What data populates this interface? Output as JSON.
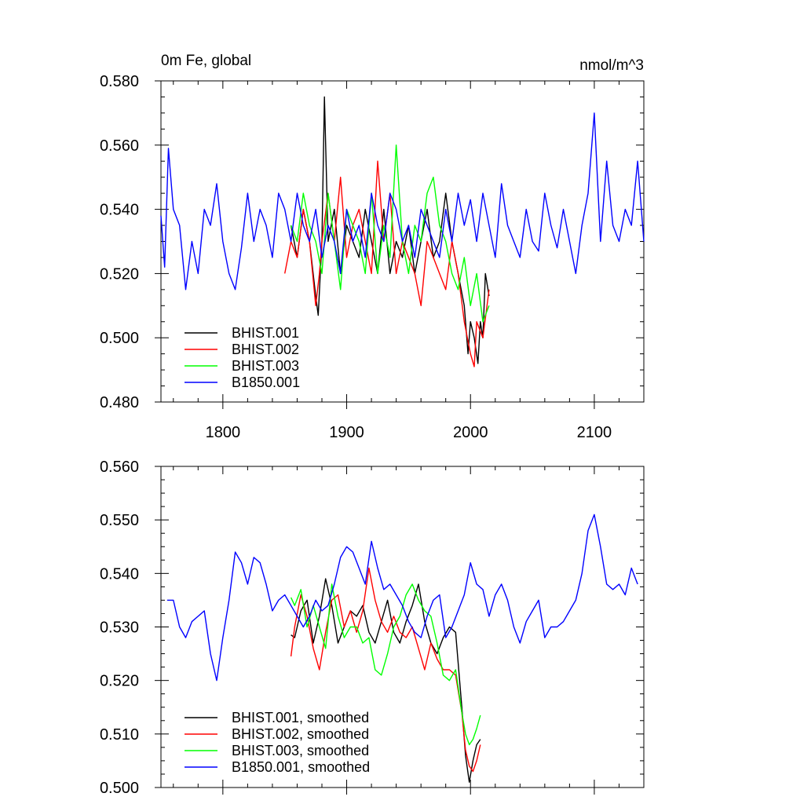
{
  "chart_data": [
    {
      "type": "line",
      "title": "0m Fe, global",
      "units": "nmol/m^3",
      "xlim": [
        1750,
        2140
      ],
      "ylim": [
        0.48,
        0.58
      ],
      "xticks": [
        1800,
        1900,
        2000,
        2100
      ],
      "xtick_labels": [
        "1800",
        "1900",
        "2000",
        "2100"
      ],
      "yticks": [
        0.48,
        0.5,
        0.52,
        0.54,
        0.56,
        0.58
      ],
      "ytick_labels": [
        "0.480",
        "0.500",
        "0.520",
        "0.540",
        "0.560",
        "0.580"
      ],
      "grid": false,
      "legend_position": "bottom-left",
      "series": [
        {
          "name": "BHIST.001",
          "color": "#000000",
          "x": [
            1855,
            1860,
            1865,
            1870,
            1875,
            1877,
            1880,
            1882,
            1885,
            1890,
            1895,
            1900,
            1905,
            1910,
            1915,
            1920,
            1925,
            1930,
            1935,
            1940,
            1945,
            1950,
            1955,
            1960,
            1965,
            1970,
            1975,
            1980,
            1985,
            1990,
            1995,
            1998,
            2000,
            2003,
            2006,
            2008,
            2010,
            2012,
            2015
          ],
          "y": [
            0.535,
            0.525,
            0.54,
            0.53,
            0.513,
            0.507,
            0.53,
            0.575,
            0.53,
            0.54,
            0.52,
            0.535,
            0.53,
            0.525,
            0.54,
            0.53,
            0.52,
            0.54,
            0.52,
            0.53,
            0.525,
            0.535,
            0.52,
            0.53,
            0.54,
            0.525,
            0.53,
            0.545,
            0.53,
            0.52,
            0.51,
            0.495,
            0.505,
            0.5,
            0.492,
            0.505,
            0.5,
            0.52,
            0.513
          ]
        },
        {
          "name": "BHIST.002",
          "color": "#ff0000",
          "x": [
            1850,
            1855,
            1860,
            1865,
            1870,
            1875,
            1878,
            1880,
            1885,
            1890,
            1895,
            1900,
            1905,
            1910,
            1915,
            1920,
            1925,
            1930,
            1935,
            1940,
            1945,
            1950,
            1955,
            1960,
            1965,
            1970,
            1975,
            1980,
            1985,
            1990,
            1995,
            2000,
            2003,
            2005,
            2010,
            2015
          ],
          "y": [
            0.52,
            0.53,
            0.525,
            0.54,
            0.53,
            0.51,
            0.52,
            0.53,
            0.545,
            0.53,
            0.55,
            0.525,
            0.535,
            0.54,
            0.53,
            0.52,
            0.555,
            0.53,
            0.545,
            0.52,
            0.53,
            0.525,
            0.52,
            0.51,
            0.53,
            0.525,
            0.52,
            0.515,
            0.53,
            0.52,
            0.505,
            0.495,
            0.491,
            0.505,
            0.5,
            0.515
          ]
        },
        {
          "name": "BHIST.003",
          "color": "#00ff00",
          "x": [
            1855,
            1860,
            1865,
            1870,
            1875,
            1880,
            1885,
            1890,
            1895,
            1900,
            1905,
            1910,
            1915,
            1920,
            1925,
            1930,
            1935,
            1940,
            1945,
            1950,
            1955,
            1960,
            1965,
            1970,
            1975,
            1980,
            1985,
            1990,
            1995,
            2000,
            2005,
            2010,
            2015
          ],
          "y": [
            0.535,
            0.53,
            0.545,
            0.535,
            0.53,
            0.52,
            0.545,
            0.53,
            0.515,
            0.54,
            0.535,
            0.53,
            0.52,
            0.545,
            0.52,
            0.535,
            0.525,
            0.56,
            0.53,
            0.52,
            0.535,
            0.53,
            0.545,
            0.55,
            0.535,
            0.53,
            0.52,
            0.515,
            0.525,
            0.51,
            0.52,
            0.505,
            0.51
          ]
        },
        {
          "name": "B1850.001",
          "color": "#0000ff",
          "x": [
            1750,
            1753,
            1756,
            1760,
            1765,
            1770,
            1775,
            1780,
            1785,
            1790,
            1795,
            1800,
            1805,
            1810,
            1815,
            1820,
            1825,
            1830,
            1835,
            1840,
            1845,
            1850,
            1855,
            1860,
            1865,
            1870,
            1875,
            1880,
            1885,
            1890,
            1895,
            1900,
            1905,
            1910,
            1915,
            1920,
            1925,
            1930,
            1935,
            1940,
            1945,
            1950,
            1955,
            1960,
            1965,
            1970,
            1975,
            1980,
            1985,
            1990,
            1995,
            2000,
            2005,
            2010,
            2015,
            2020,
            2025,
            2030,
            2035,
            2040,
            2045,
            2050,
            2055,
            2060,
            2065,
            2070,
            2075,
            2080,
            2085,
            2090,
            2095,
            2100,
            2105,
            2110,
            2115,
            2120,
            2125,
            2130,
            2135,
            2140
          ],
          "y": [
            0.538,
            0.522,
            0.559,
            0.54,
            0.535,
            0.515,
            0.53,
            0.52,
            0.54,
            0.535,
            0.548,
            0.53,
            0.52,
            0.515,
            0.528,
            0.545,
            0.53,
            0.54,
            0.535,
            0.525,
            0.545,
            0.54,
            0.53,
            0.545,
            0.535,
            0.53,
            0.54,
            0.525,
            0.535,
            0.53,
            0.52,
            0.54,
            0.53,
            0.535,
            0.525,
            0.545,
            0.535,
            0.53,
            0.545,
            0.54,
            0.53,
            0.535,
            0.525,
            0.54,
            0.535,
            0.53,
            0.525,
            0.54,
            0.53,
            0.545,
            0.535,
            0.543,
            0.53,
            0.545,
            0.535,
            0.525,
            0.548,
            0.535,
            0.53,
            0.525,
            0.54,
            0.53,
            0.527,
            0.545,
            0.535,
            0.528,
            0.54,
            0.53,
            0.52,
            0.535,
            0.545,
            0.57,
            0.53,
            0.555,
            0.535,
            0.53,
            0.54,
            0.535,
            0.555,
            0.53
          ]
        }
      ]
    },
    {
      "type": "line",
      "xlim": [
        1750,
        2140
      ],
      "ylim": [
        0.5,
        0.56
      ],
      "xticks": [
        1800,
        1900,
        2000,
        2100
      ],
      "yticks": [
        0.5,
        0.51,
        0.52,
        0.53,
        0.54,
        0.55,
        0.56
      ],
      "ytick_labels": [
        "0.500",
        "0.510",
        "0.520",
        "0.530",
        "0.540",
        "0.550",
        "0.560"
      ],
      "grid": false,
      "legend_position": "bottom-left",
      "series": [
        {
          "name": "BHIST.001, smoothed",
          "color": "#000000",
          "x": [
            1855,
            1858,
            1863,
            1868,
            1873,
            1878,
            1883,
            1888,
            1893,
            1898,
            1903,
            1908,
            1913,
            1918,
            1923,
            1928,
            1933,
            1938,
            1943,
            1948,
            1953,
            1958,
            1963,
            1968,
            1973,
            1978,
            1983,
            1988,
            1993,
            1996,
            1999,
            2002,
            2005,
            2008
          ],
          "y": [
            0.5285,
            0.528,
            0.533,
            0.535,
            0.527,
            0.532,
            0.539,
            0.534,
            0.527,
            0.53,
            0.533,
            0.532,
            0.534,
            0.529,
            0.527,
            0.531,
            0.535,
            0.529,
            0.527,
            0.531,
            0.534,
            0.538,
            0.531,
            0.527,
            0.525,
            0.528,
            0.53,
            0.529,
            0.515,
            0.506,
            0.501,
            0.505,
            0.508,
            0.509
          ]
        },
        {
          "name": "BHIST.002, smoothed",
          "color": "#ff0000",
          "x": [
            1855,
            1858,
            1863,
            1868,
            1873,
            1878,
            1883,
            1888,
            1893,
            1898,
            1903,
            1908,
            1913,
            1918,
            1923,
            1928,
            1933,
            1938,
            1943,
            1948,
            1953,
            1958,
            1963,
            1968,
            1973,
            1978,
            1983,
            1988,
            1993,
            1996,
            1999,
            2002,
            2005,
            2008
          ],
          "y": [
            0.5245,
            0.53,
            0.536,
            0.532,
            0.526,
            0.522,
            0.529,
            0.535,
            0.536,
            0.53,
            0.533,
            0.529,
            0.533,
            0.541,
            0.535,
            0.531,
            0.529,
            0.532,
            0.529,
            0.528,
            0.53,
            0.526,
            0.522,
            0.527,
            0.524,
            0.522,
            0.522,
            0.521,
            0.514,
            0.507,
            0.504,
            0.503,
            0.505,
            0.508
          ]
        },
        {
          "name": "BHIST.003, smoothed",
          "color": "#00ff00",
          "x": [
            1855,
            1858,
            1863,
            1868,
            1873,
            1878,
            1883,
            1888,
            1893,
            1898,
            1903,
            1908,
            1913,
            1918,
            1923,
            1928,
            1933,
            1938,
            1943,
            1948,
            1953,
            1958,
            1963,
            1968,
            1973,
            1978,
            1983,
            1988,
            1993,
            1996,
            1999,
            2002,
            2005,
            2008
          ],
          "y": [
            0.5355,
            0.534,
            0.537,
            0.53,
            0.534,
            0.53,
            0.526,
            0.538,
            0.532,
            0.528,
            0.53,
            0.53,
            0.527,
            0.528,
            0.522,
            0.521,
            0.525,
            0.53,
            0.532,
            0.536,
            0.538,
            0.535,
            0.533,
            0.532,
            0.527,
            0.521,
            0.52,
            0.522,
            0.514,
            0.51,
            0.508,
            0.509,
            0.511,
            0.5135
          ]
        },
        {
          "name": "B1850.001, smoothed",
          "color": "#0000ff",
          "x": [
            1755,
            1760,
            1765,
            1770,
            1775,
            1780,
            1785,
            1790,
            1795,
            1800,
            1805,
            1810,
            1815,
            1820,
            1825,
            1830,
            1835,
            1840,
            1845,
            1850,
            1855,
            1860,
            1865,
            1870,
            1875,
            1880,
            1885,
            1890,
            1895,
            1900,
            1905,
            1910,
            1915,
            1920,
            1925,
            1930,
            1935,
            1940,
            1945,
            1950,
            1955,
            1960,
            1965,
            1970,
            1975,
            1980,
            1985,
            1990,
            1995,
            2000,
            2005,
            2010,
            2015,
            2020,
            2025,
            2030,
            2035,
            2040,
            2045,
            2050,
            2055,
            2060,
            2065,
            2070,
            2075,
            2080,
            2085,
            2090,
            2095,
            2100,
            2105,
            2110,
            2115,
            2120,
            2125,
            2130,
            2135
          ],
          "y": [
            0.535,
            0.535,
            0.53,
            0.528,
            0.531,
            0.532,
            0.533,
            0.525,
            0.52,
            0.528,
            0.535,
            0.544,
            0.542,
            0.538,
            0.543,
            0.542,
            0.538,
            0.533,
            0.535,
            0.536,
            0.534,
            0.532,
            0.53,
            0.532,
            0.535,
            0.533,
            0.534,
            0.538,
            0.543,
            0.545,
            0.544,
            0.541,
            0.538,
            0.546,
            0.541,
            0.537,
            0.538,
            0.536,
            0.534,
            0.531,
            0.529,
            0.528,
            0.532,
            0.535,
            0.536,
            0.528,
            0.53,
            0.533,
            0.536,
            0.542,
            0.538,
            0.537,
            0.532,
            0.536,
            0.538,
            0.535,
            0.53,
            0.527,
            0.531,
            0.533,
            0.535,
            0.528,
            0.53,
            0.53,
            0.531,
            0.533,
            0.535,
            0.54,
            0.548,
            0.551,
            0.545,
            0.538,
            0.537,
            0.538,
            0.536,
            0.541,
            0.538
          ]
        }
      ]
    }
  ]
}
